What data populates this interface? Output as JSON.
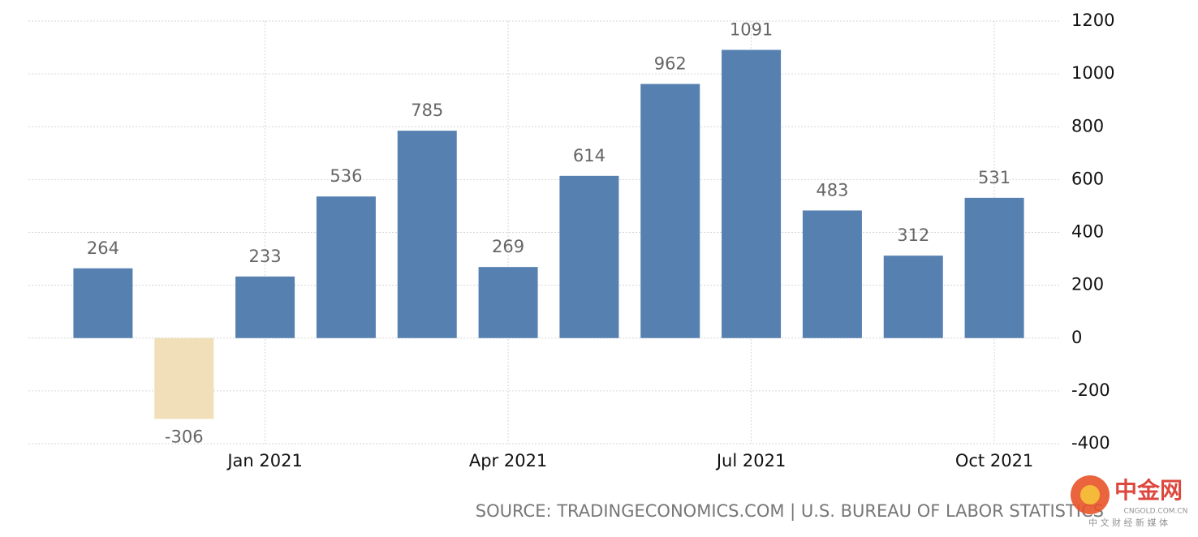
{
  "chart_data": {
    "type": "bar",
    "categories": [
      null,
      null,
      "Jan 2021",
      null,
      null,
      "Apr 2021",
      null,
      null,
      "Jul 2021",
      null,
      null,
      "Oct 2021"
    ],
    "series": [
      {
        "values": [
          264,
          -306,
          233,
          536,
          785,
          269,
          614,
          962,
          1091,
          483,
          312,
          531
        ],
        "color": "#5580b0",
        "negative_color": "#f0dfb8"
      }
    ],
    "ylim": [
      -400,
      1200
    ],
    "yticks": [
      -400,
      -200,
      0,
      200,
      400,
      600,
      800,
      1000,
      1200
    ],
    "grid": true,
    "y_axis_side": "right",
    "source": "SOURCE: TRADINGECONOMICS.COM | U.S. BUREAU OF LABOR STATISTICS"
  },
  "watermark": {
    "name": "中金网",
    "domain": "CNGOLD.COM.CN",
    "tagline": "中 文 财 经 新 媒 体"
  }
}
